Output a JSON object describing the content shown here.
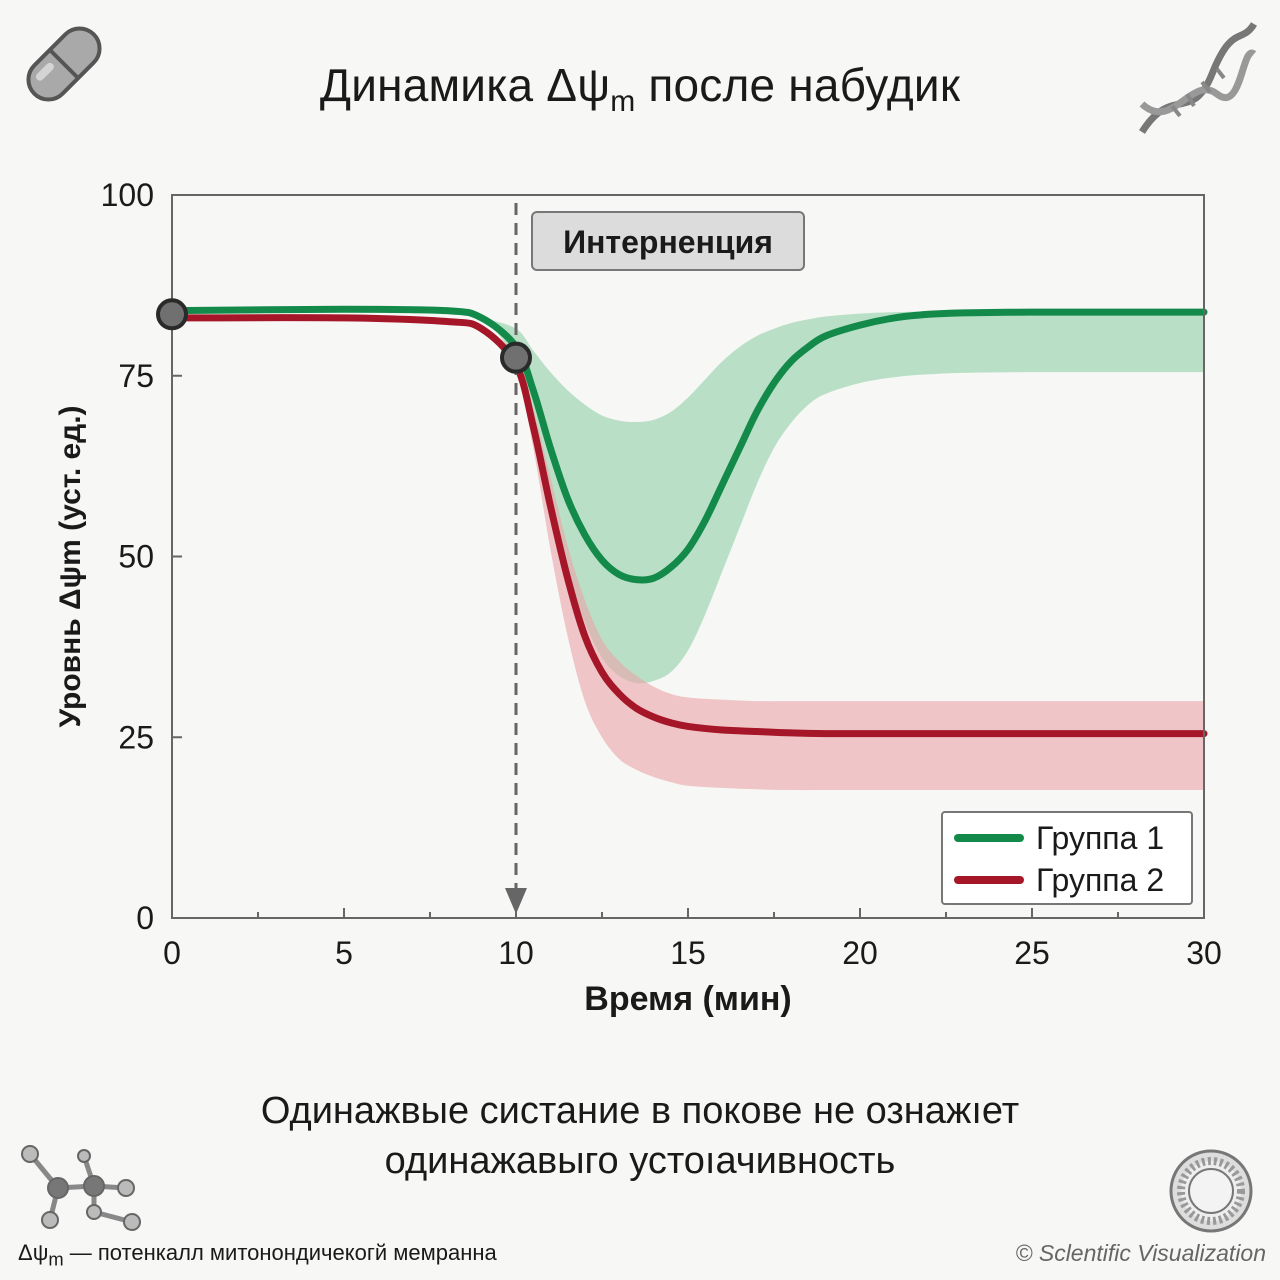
{
  "header": {
    "title_pre": "Динамика Δψ",
    "title_sub": "m",
    "title_post": " после набудик"
  },
  "chart_data": {
    "type": "line",
    "xlabel": "Время (мин)",
    "ylabel": "Уровнь Δψm (уст. ед.)",
    "xlim": [
      0,
      30
    ],
    "ylim": [
      0,
      100
    ],
    "xticks": [
      0,
      5,
      10,
      15,
      20,
      25,
      30
    ],
    "yticks": [
      0,
      25,
      50,
      75,
      100
    ],
    "grid": false,
    "legend_position": "bottom-right",
    "annotation": {
      "label": "Интерненция",
      "x": 10
    },
    "markers": [
      {
        "x": 0,
        "y": 83.5
      },
      {
        "x": 10,
        "y": 77.5
      }
    ],
    "series": [
      {
        "name": "Группа 1",
        "color": "#138a4a",
        "band_color": "#8fd0a6",
        "x": [
          0,
          5,
          8,
          9,
          10,
          10.5,
          11,
          11.5,
          12,
          12.5,
          13,
          13.5,
          14,
          14.5,
          15,
          15.5,
          16,
          16.5,
          17,
          17.5,
          18,
          18.5,
          19,
          20,
          21,
          22,
          23,
          25,
          27,
          30
        ],
        "y": [
          84,
          84.2,
          84,
          83,
          79,
          73,
          65,
          58,
          53,
          49.5,
          47.5,
          46.8,
          47,
          48.5,
          51,
          55,
          60,
          65,
          70,
          74,
          77,
          79,
          80.5,
          82,
          83,
          83.5,
          83.7,
          83.8,
          83.8,
          83.8
        ],
        "upper": [
          84,
          84.2,
          84,
          83,
          81.5,
          78.5,
          75.5,
          73,
          71,
          69.5,
          68.8,
          68.6,
          68.9,
          70,
          72,
          74.5,
          77,
          79,
          80.5,
          81.5,
          82.3,
          82.8,
          83.2,
          83.6,
          83.8,
          83.9,
          84,
          84,
          84,
          84
        ],
        "lower": [
          84,
          84.2,
          84,
          83,
          77,
          68,
          57,
          48,
          41,
          36,
          33.5,
          32.5,
          32.8,
          34,
          37,
          42,
          48,
          54,
          60,
          65,
          68.5,
          71,
          72.5,
          74,
          74.8,
          75.2,
          75.4,
          75.5,
          75.5,
          75.5
        ]
      },
      {
        "name": "Группа 2",
        "color": "#a51728",
        "band_color": "#eaa3a9",
        "x": [
          0,
          5,
          8,
          9,
          10,
          10.5,
          11,
          11.5,
          12,
          12.5,
          13,
          13.5,
          14,
          14.5,
          15,
          16,
          17,
          18,
          19,
          20,
          22,
          25,
          30
        ],
        "y": [
          83,
          83,
          82.5,
          81.5,
          76.5,
          68,
          57,
          47,
          39,
          34,
          31,
          29,
          27.8,
          27,
          26.5,
          26,
          25.8,
          25.6,
          25.5,
          25.5,
          25.5,
          25.5,
          25.5
        ],
        "upper": [
          83,
          83,
          82.5,
          81.5,
          78,
          70.5,
          61,
          51.5,
          44,
          38.5,
          35.5,
          33.5,
          32,
          31,
          30.5,
          30.2,
          30,
          30,
          30,
          30,
          30,
          30,
          30
        ],
        "lower": [
          83,
          83,
          82.5,
          81.5,
          75.5,
          65,
          51,
          39,
          30,
          25,
          22,
          20.5,
          19.5,
          18.8,
          18.3,
          18,
          17.8,
          17.7,
          17.7,
          17.7,
          17.7,
          17.7,
          17.7
        ]
      }
    ]
  },
  "caption": {
    "line1": "Одинажвые систание в покове не ознажıет",
    "line2": "одинажавыго устоıачивность"
  },
  "footer": {
    "footnote_pre": "Δψ",
    "footnote_sub": "m",
    "footnote_post": " — потенкалл митонондичекогй мемранна",
    "credit": "© Sclentific Visualization"
  },
  "decor": {
    "top_left_icon": "capsule-icon",
    "top_right_icon": "dna-icon",
    "bottom_left_icon": "molecule-icon",
    "bottom_right_icon": "liposome-icon"
  }
}
